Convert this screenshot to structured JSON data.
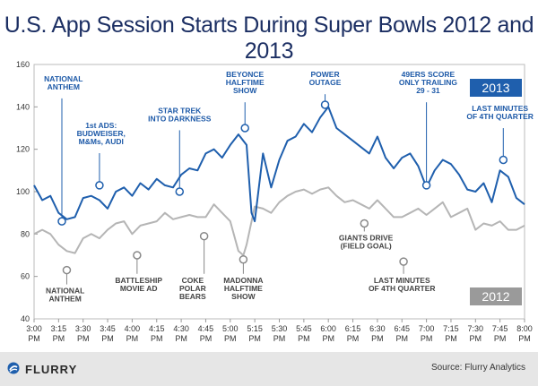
{
  "title": "U.S. App Session Starts During Super Bowls 2012 and 2013",
  "footer": {
    "brand": "FLURRY",
    "source": "Source: Flurry Analytics"
  },
  "colors": {
    "y2013": "#1f5fad",
    "y2012": "#b5b5b5",
    "badge2013": "#1f5fad",
    "badge2012": "#9a9a9a"
  },
  "chart_data": {
    "type": "line",
    "ylim": [
      40,
      160
    ],
    "yticks": [
      40,
      60,
      80,
      100,
      120,
      140,
      160
    ],
    "xlim_minutes": [
      0,
      300
    ],
    "xticks": [
      {
        "t": 0,
        "line1": "3:00",
        "line2": "PM"
      },
      {
        "t": 15,
        "line1": "3:15",
        "line2": "PM"
      },
      {
        "t": 30,
        "line1": "3:30",
        "line2": "PM"
      },
      {
        "t": 45,
        "line1": "3:45",
        "line2": "PM"
      },
      {
        "t": 60,
        "line1": "4:00",
        "line2": "PM"
      },
      {
        "t": 75,
        "line1": "4:15",
        "line2": "PM"
      },
      {
        "t": 90,
        "line1": "4:30",
        "line2": "PM"
      },
      {
        "t": 105,
        "line1": "4:45",
        "line2": "PM"
      },
      {
        "t": 120,
        "line1": "5:00",
        "line2": "PM"
      },
      {
        "t": 135,
        "line1": "5:15",
        "line2": "PM"
      },
      {
        "t": 150,
        "line1": "5:30",
        "line2": "PM"
      },
      {
        "t": 165,
        "line1": "5:45",
        "line2": "PM"
      },
      {
        "t": 180,
        "line1": "6:00",
        "line2": "PM"
      },
      {
        "t": 195,
        "line1": "6:15",
        "line2": "PM"
      },
      {
        "t": 210,
        "line1": "6:30",
        "line2": "PM"
      },
      {
        "t": 225,
        "line1": "6:45",
        "line2": "PM"
      },
      {
        "t": 240,
        "line1": "7:00",
        "line2": "PM"
      },
      {
        "t": 255,
        "line1": "7:15",
        "line2": "PM"
      },
      {
        "t": 270,
        "line1": "7:30",
        "line2": "PM"
      },
      {
        "t": 285,
        "line1": "7:45",
        "line2": "PM"
      },
      {
        "t": 300,
        "line1": "8:00",
        "line2": "PM"
      }
    ],
    "series": [
      {
        "name": "2013",
        "points": [
          [
            0,
            103
          ],
          [
            5,
            96
          ],
          [
            10,
            98
          ],
          [
            15,
            90
          ],
          [
            20,
            87
          ],
          [
            25,
            88
          ],
          [
            30,
            97
          ],
          [
            35,
            98
          ],
          [
            40,
            96
          ],
          [
            45,
            92
          ],
          [
            50,
            100
          ],
          [
            55,
            102
          ],
          [
            60,
            98
          ],
          [
            65,
            104
          ],
          [
            70,
            101
          ],
          [
            75,
            106
          ],
          [
            80,
            103
          ],
          [
            85,
            102
          ],
          [
            90,
            108
          ],
          [
            95,
            111
          ],
          [
            100,
            110
          ],
          [
            105,
            118
          ],
          [
            110,
            120
          ],
          [
            115,
            116
          ],
          [
            120,
            122
          ],
          [
            125,
            127
          ],
          [
            130,
            122
          ],
          [
            133,
            90
          ],
          [
            135,
            86
          ],
          [
            140,
            118
          ],
          [
            145,
            102
          ],
          [
            150,
            115
          ],
          [
            155,
            124
          ],
          [
            160,
            126
          ],
          [
            165,
            132
          ],
          [
            170,
            128
          ],
          [
            175,
            135
          ],
          [
            180,
            140
          ],
          [
            185,
            130
          ],
          [
            190,
            127
          ],
          [
            195,
            124
          ],
          [
            200,
            121
          ],
          [
            205,
            118
          ],
          [
            210,
            126
          ],
          [
            215,
            116
          ],
          [
            220,
            111
          ],
          [
            225,
            116
          ],
          [
            230,
            118
          ],
          [
            235,
            112
          ],
          [
            240,
            102
          ],
          [
            245,
            110
          ],
          [
            250,
            115
          ],
          [
            255,
            113
          ],
          [
            260,
            108
          ],
          [
            265,
            101
          ],
          [
            270,
            100
          ],
          [
            275,
            104
          ],
          [
            280,
            95
          ],
          [
            285,
            110
          ],
          [
            290,
            107
          ],
          [
            295,
            97
          ],
          [
            300,
            94
          ]
        ]
      },
      {
        "name": "2012",
        "points": [
          [
            0,
            80
          ],
          [
            5,
            82
          ],
          [
            10,
            80
          ],
          [
            15,
            75
          ],
          [
            20,
            72
          ],
          [
            25,
            71
          ],
          [
            30,
            78
          ],
          [
            35,
            80
          ],
          [
            40,
            78
          ],
          [
            45,
            82
          ],
          [
            50,
            85
          ],
          [
            55,
            86
          ],
          [
            60,
            80
          ],
          [
            65,
            84
          ],
          [
            70,
            85
          ],
          [
            75,
            86
          ],
          [
            80,
            90
          ],
          [
            85,
            87
          ],
          [
            90,
            88
          ],
          [
            95,
            89
          ],
          [
            100,
            88
          ],
          [
            105,
            88
          ],
          [
            110,
            94
          ],
          [
            115,
            90
          ],
          [
            120,
            86
          ],
          [
            125,
            72
          ],
          [
            128,
            70
          ],
          [
            130,
            75
          ],
          [
            135,
            93
          ],
          [
            140,
            92
          ],
          [
            145,
            90
          ],
          [
            150,
            95
          ],
          [
            155,
            98
          ],
          [
            160,
            100
          ],
          [
            165,
            101
          ],
          [
            170,
            99
          ],
          [
            175,
            101
          ],
          [
            180,
            102
          ],
          [
            185,
            98
          ],
          [
            190,
            95
          ],
          [
            195,
            96
          ],
          [
            200,
            94
          ],
          [
            205,
            92
          ],
          [
            210,
            96
          ],
          [
            215,
            92
          ],
          [
            220,
            88
          ],
          [
            225,
            88
          ],
          [
            230,
            90
          ],
          [
            235,
            92
          ],
          [
            240,
            89
          ],
          [
            245,
            92
          ],
          [
            250,
            95
          ],
          [
            255,
            88
          ],
          [
            260,
            90
          ],
          [
            265,
            92
          ],
          [
            270,
            82
          ],
          [
            275,
            85
          ],
          [
            280,
            84
          ],
          [
            285,
            86
          ],
          [
            290,
            82
          ],
          [
            295,
            82
          ],
          [
            300,
            84
          ]
        ]
      }
    ],
    "badges": [
      {
        "label": "2013",
        "series": "2013"
      },
      {
        "label": "2012",
        "series": "2012"
      }
    ],
    "annotations_2013": [
      {
        "lines": [
          "NATIONAL",
          "ANTHEM"
        ],
        "t": 17,
        "marker_y": 86,
        "label_t": 18,
        "label_y": 152
      },
      {
        "lines": [
          "1st ADS:",
          "BUDWEISER,",
          "M&Ms, AUDI"
        ],
        "t": 40,
        "marker_y": 103,
        "label_t": 41,
        "label_y": 130
      },
      {
        "lines": [
          "STAR TREK",
          "INTO DARKNESS"
        ],
        "t": 89,
        "marker_y": 100,
        "label_t": 89,
        "label_y": 137
      },
      {
        "lines": [
          "BEYONCE",
          "HALFTIME",
          "SHOW"
        ],
        "t": 129,
        "marker_y": 130,
        "label_t": 129,
        "label_y": 154
      },
      {
        "lines": [
          "POWER",
          "OUTAGE"
        ],
        "t": 178,
        "marker_y": 141,
        "label_t": 178,
        "label_y": 154
      },
      {
        "lines": [
          "49ERS SCORE",
          "ONLY TRAILING",
          "29 - 31"
        ],
        "t": 240,
        "marker_y": 103,
        "label_t": 241,
        "label_y": 154
      },
      {
        "lines": [
          "LAST MINUTES",
          "OF 4TH QUARTER"
        ],
        "t": 287,
        "marker_y": 115,
        "label_t": 285,
        "label_y": 138
      }
    ],
    "annotations_2012": [
      {
        "lines": [
          "NATIONAL",
          "ANTHEM"
        ],
        "t": 20,
        "marker_y": 63,
        "label_t": 19,
        "label_y": 52
      },
      {
        "lines": [
          "BATTLESHIP",
          "MOVIE AD"
        ],
        "t": 63,
        "marker_y": 70,
        "label_t": 64,
        "label_y": 57
      },
      {
        "lines": [
          "COKE",
          "POLAR",
          "BEARS"
        ],
        "t": 104,
        "marker_y": 79,
        "label_t": 97,
        "label_y": 57
      },
      {
        "lines": [
          "MADONNA",
          "HALFTIME",
          "SHOW"
        ],
        "t": 128,
        "marker_y": 68,
        "label_t": 128,
        "label_y": 57
      },
      {
        "lines": [
          "GIANTS DRIVE",
          "(FIELD GOAL)"
        ],
        "t": 202,
        "marker_y": 85,
        "label_t": 203,
        "label_y": 77
      },
      {
        "lines": [
          "LAST MINUTES",
          "OF 4TH QUARTER"
        ],
        "t": 226,
        "marker_y": 67,
        "label_t": 225,
        "label_y": 57
      }
    ]
  }
}
